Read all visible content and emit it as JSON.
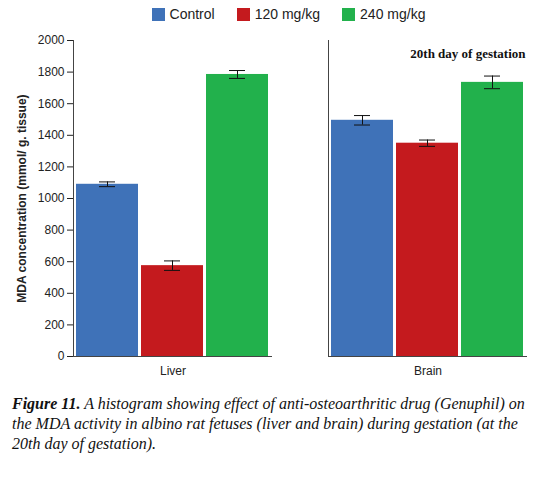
{
  "chart_data": {
    "type": "bar",
    "categories": [
      "Liver",
      "Brain"
    ],
    "series": [
      {
        "name": "Control",
        "color": "#3f72b8",
        "values": [
          1090,
          1495
        ],
        "errors": [
          15,
          30
        ]
      },
      {
        "name": "120 mg/kg",
        "color": "#c41a1e",
        "values": [
          575,
          1350
        ],
        "errors": [
          30,
          20
        ]
      },
      {
        "name": "240 mg/kg",
        "color": "#22b14c",
        "values": [
          1785,
          1735
        ],
        "errors": [
          25,
          40
        ]
      }
    ],
    "ylabel": "MDA concentration (mmol/ g. tissue)",
    "ylim": [
      0,
      2000
    ],
    "yticks": [
      0,
      200,
      400,
      600,
      800,
      1000,
      1200,
      1400,
      1600,
      1800,
      2000
    ],
    "annotation": "20th day of gestation",
    "caption_label": "Figure 11.",
    "caption": "A histogram showing effect of anti-osteoarthritic drug (Genuphil) on the MDA activity in albino rat fetuses (liver and brain) during gestation (at the 20th day of gestation).",
    "legend": "top",
    "grid": false
  }
}
